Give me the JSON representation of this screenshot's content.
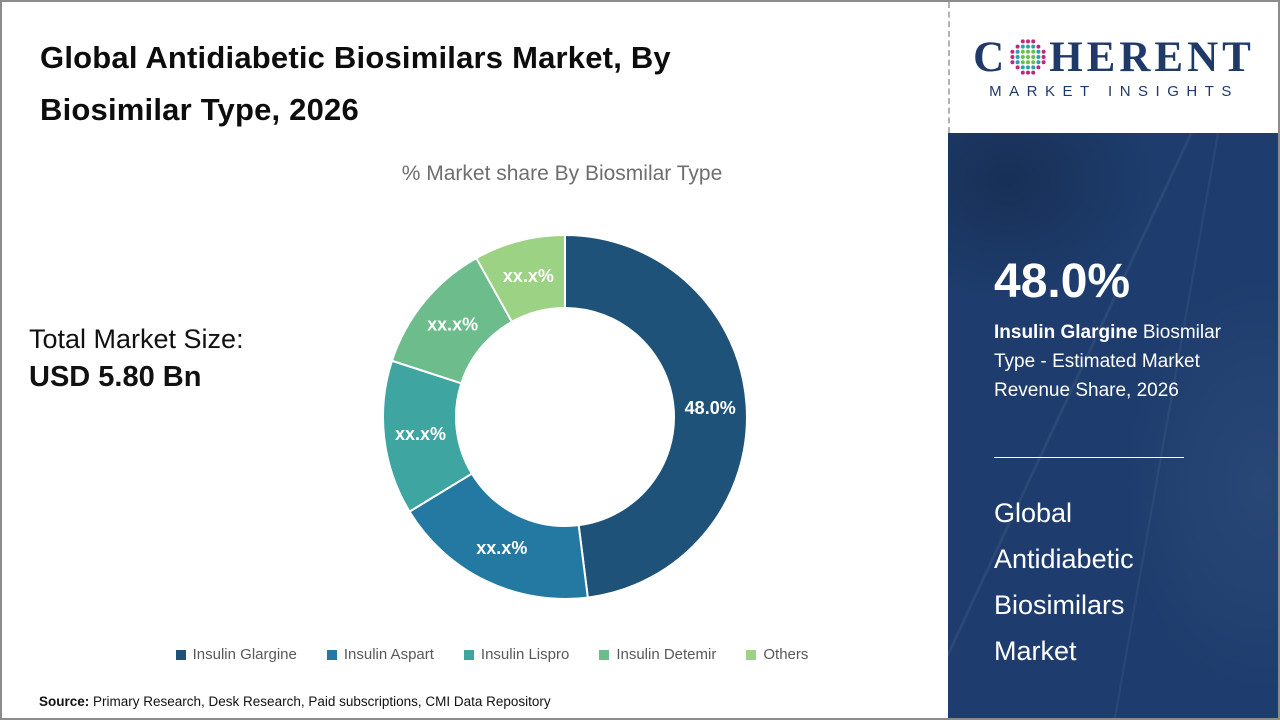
{
  "header": {
    "title_lines": [
      "Global Antidiabetic Biosimilars Market, By",
      "Biosimilar Type, 2026"
    ]
  },
  "logo": {
    "name_first": "C",
    "name_rest": "HERENT",
    "tagline": "MARKET INSIGHTS",
    "brand_color": "#1f3a68",
    "globe_dot_colors": {
      "inner": "#6abf4b",
      "middle": "#2a9fb0",
      "outer": "#c2267d"
    }
  },
  "stats": {
    "total_label": "Total Market Size:",
    "total_value": "USD 5.80 Bn"
  },
  "chart_data": {
    "type": "pie",
    "subtype": "donut",
    "title": "% Market share By Biosmilar Type",
    "categories": [
      "Insulin Glargine",
      "Insulin Aspart",
      "Insulin Lispro",
      "Insulin Detemir",
      "Others"
    ],
    "values": [
      48.0,
      18.3,
      13.7,
      11.9,
      8.1
    ],
    "slice_labels": [
      "48.0%",
      "xx.x%",
      "xx.x%",
      "xx.x%",
      "xx.x%"
    ],
    "colors": [
      "#1e5278",
      "#2479a2",
      "#3fa5a0",
      "#6cbd8b",
      "#9bd283"
    ],
    "start_angle_deg": 0,
    "direction": "clockwise",
    "inner_radius_ratio": 0.6,
    "legend_position": "bottom",
    "slice_gap_stroke": "#ffffff"
  },
  "sidebar": {
    "highlight_value": "48.0%",
    "highlight_bold": "Insulin Glargine",
    "highlight_rest": " Biosmilar Type - Estimated Market Revenue Share, 2026",
    "market_name": "Global Antidiabetic Biosimilars Market",
    "background_color": "#1e3d6e"
  },
  "footer": {
    "source_label": "Source:",
    "source_text": " Primary Research, Desk Research, Paid subscriptions, CMI Data Repository"
  }
}
